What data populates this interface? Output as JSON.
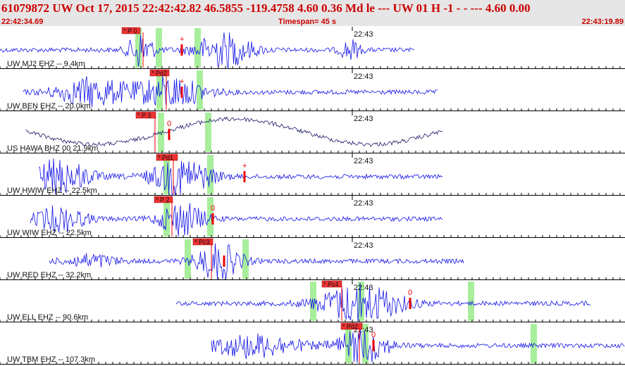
{
  "header": {
    "title": "61079872 UW Oct 17, 2015 22:42:42.82   46.5855 -119.4758  4.60 0.36 Md le    ---     UW 01 H   -1  -  - ---  4.60 0.00",
    "start_time": "22:42:34.69",
    "timespan": "Timespan=  45 s",
    "end_time": "22:43:19.89"
  },
  "colors": {
    "trace": "#1212e8",
    "long_period_trace": "#1a1a66",
    "pick": "#ee0000",
    "window": "#a8ee9c",
    "header_text": "#cc0000"
  },
  "minute_marker": "22:43",
  "traces": [
    {
      "label": "UW MJ2 EHZ -- 9.4km",
      "pick": "* P 0",
      "marker": "+"
    },
    {
      "label": "UW BEN EHZ -- 20.0km",
      "pick": "* Pd2",
      "marker": "+"
    },
    {
      "label": "US HAWA BHZ 00 21.9km",
      "pick": "* P 3",
      "marker": "0"
    },
    {
      "label": "UW HWIW EHZ -- 22.5km",
      "pick": "* Pd1",
      "marker": "+"
    },
    {
      "label": "UW WIW EHZ -- 22.5km",
      "pick": "* P 2",
      "marker": "0"
    },
    {
      "label": "UW RED EHZ -- 32.2km",
      "pick": "* Pc3",
      "marker": ""
    },
    {
      "label": "UW ELL EHZ -- 90.6km",
      "pick": "* Pc4",
      "marker": "0"
    },
    {
      "label": "UW TBM EHZ -- 107.3km",
      "pick": "* Pd2",
      "marker": "0"
    }
  ]
}
